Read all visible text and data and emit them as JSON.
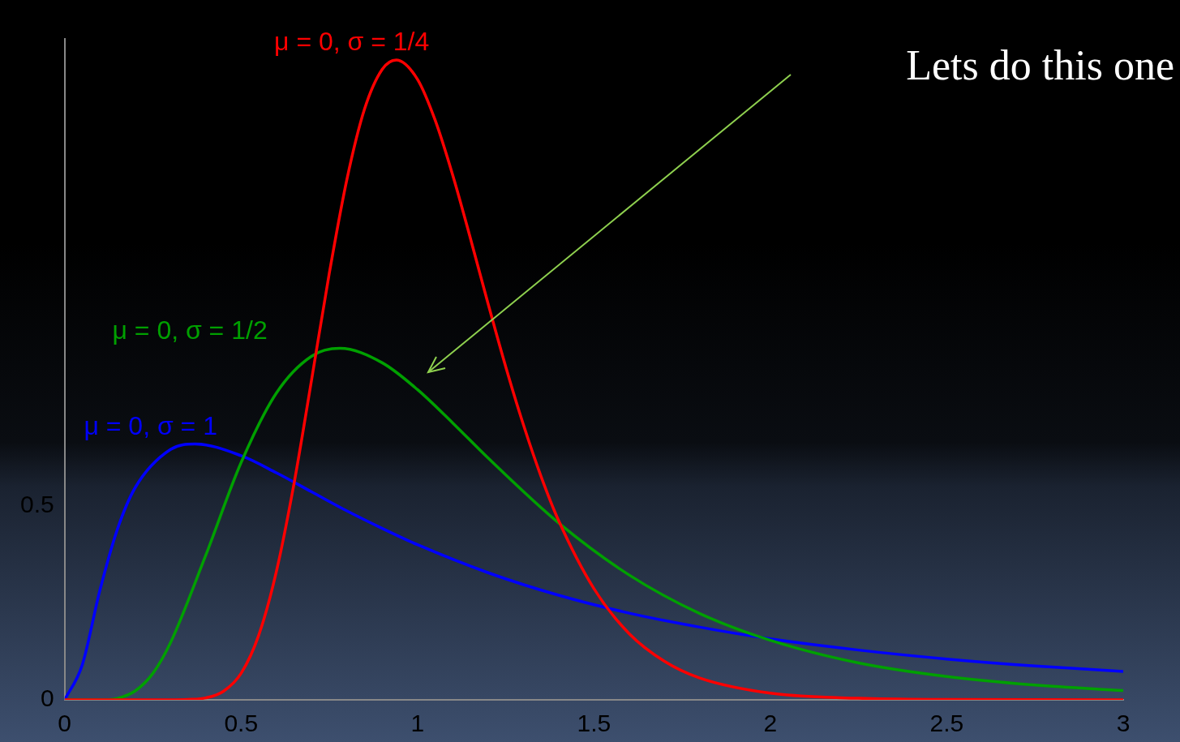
{
  "chart_data": {
    "type": "line",
    "xlim": [
      0,
      3
    ],
    "xticks": [
      0,
      0.5,
      1,
      1.5,
      2,
      2.5,
      3
    ],
    "ylim": [
      0,
      1.7
    ],
    "yticks": [
      0,
      0.5
    ],
    "grid": false,
    "legend": false,
    "marker": "none",
    "line_style": "solid",
    "series": [
      {
        "name": "μ = 0, σ = 1/4",
        "color": "#ff0000",
        "x": [
          0,
          0.3,
          0.35,
          0.4,
          0.45,
          0.5,
          0.55,
          0.6,
          0.65,
          0.7,
          0.75,
          0.8,
          0.85,
          0.9,
          0.94,
          1,
          1.05,
          1.1,
          1.15,
          1.2,
          1.25,
          1.3,
          1.35,
          1.4,
          1.5,
          1.6,
          1.7,
          1.8,
          2,
          2.25,
          2.5,
          3
        ],
        "values": [
          0,
          0,
          0.001,
          0.005,
          0.022,
          0.068,
          0.166,
          0.33,
          0.556,
          0.824,
          1.097,
          1.339,
          1.52,
          1.622,
          1.646,
          1.596,
          1.491,
          1.349,
          1.187,
          1.019,
          0.857,
          0.708,
          0.575,
          0.461,
          0.286,
          0.17,
          0.099,
          0.056,
          0.017,
          0.004,
          0.001,
          0
        ]
      },
      {
        "name": "μ = 0, σ = 1/2",
        "color": "#00a000",
        "x": [
          0,
          0.1,
          0.15,
          0.2,
          0.25,
          0.3,
          0.4,
          0.5,
          0.6,
          0.7,
          0.78,
          0.9,
          1,
          1.1,
          1.2,
          1.4,
          1.6,
          1.8,
          2,
          2.25,
          2.5,
          2.75,
          3
        ],
        "values": [
          0,
          0,
          0.004,
          0.023,
          0.068,
          0.147,
          0.372,
          0.61,
          0.789,
          0.884,
          0.904,
          0.867,
          0.798,
          0.712,
          0.622,
          0.455,
          0.321,
          0.222,
          0.153,
          0.095,
          0.06,
          0.038,
          0.024
        ]
      },
      {
        "name": "μ = 0, σ = 1",
        "color": "#0000ff",
        "x": [
          0,
          0.05,
          0.1,
          0.15,
          0.2,
          0.3,
          0.37,
          0.5,
          0.6,
          0.7,
          0.8,
          0.9,
          1,
          1.2,
          1.4,
          1.6,
          1.8,
          2,
          2.25,
          2.5,
          2.75,
          3
        ],
        "values": [
          0,
          0.09,
          0.282,
          0.44,
          0.546,
          0.644,
          0.658,
          0.628,
          0.584,
          0.535,
          0.486,
          0.441,
          0.399,
          0.327,
          0.269,
          0.223,
          0.187,
          0.157,
          0.128,
          0.105,
          0.087,
          0.073
        ]
      }
    ],
    "annotations": [
      "Lets do this one"
    ]
  }
}
